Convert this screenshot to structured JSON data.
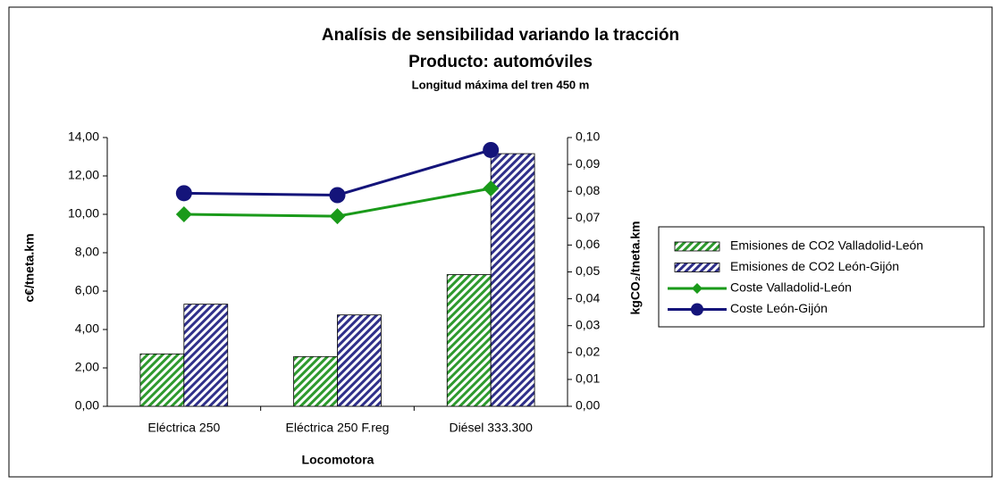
{
  "chart_data": {
    "type": "bar",
    "title": "Analísis de sensibilidad variando la tracción",
    "subtitle": "Producto: automóviles",
    "note": "Longitud máxima del tren 450 m",
    "xlabel": "Locomotora",
    "ylabel": "c€/tneta.km",
    "y2label": "kgCO₂/tneta.km",
    "categories": [
      "Eléctrica 250",
      "Eléctrica 250 F.reg",
      "Diésel 333.300"
    ],
    "series": [
      {
        "name": "Emisiones de CO2 Valladolid-León",
        "type": "bar",
        "axis": "y2",
        "color": "#2e9a2e",
        "values": [
          0.0195,
          0.0185,
          0.049
        ]
      },
      {
        "name": "Emisiones de CO2 León-Gijón",
        "type": "bar",
        "axis": "y2",
        "color": "#30308a",
        "values": [
          0.038,
          0.034,
          0.094
        ]
      },
      {
        "name": "Coste Valladolid-León",
        "type": "line",
        "marker": "diamond",
        "color": "#1a9a1a",
        "values": [
          10.0,
          9.9,
          11.35
        ]
      },
      {
        "name": "Coste León-Gijón",
        "type": "line",
        "marker": "circle",
        "color": "#14147a",
        "values": [
          11.1,
          11.0,
          13.35
        ]
      }
    ],
    "ylim": [
      0,
      14
    ],
    "yticks": [
      {
        "value": 0,
        "label": "0,00"
      },
      {
        "value": 2,
        "label": "2,00"
      },
      {
        "value": 4,
        "label": "4,00"
      },
      {
        "value": 6,
        "label": "6,00"
      },
      {
        "value": 8,
        "label": "8,00"
      },
      {
        "value": 10,
        "label": "10,00"
      },
      {
        "value": 12,
        "label": "12,00"
      },
      {
        "value": 14,
        "label": "14,00"
      }
    ],
    "y2lim": [
      0,
      0.1
    ],
    "y2ticks": [
      {
        "value": 0,
        "label": "0,00"
      },
      {
        "value": 0.01,
        "label": "0,01"
      },
      {
        "value": 0.02,
        "label": "0,02"
      },
      {
        "value": 0.03,
        "label": "0,03"
      },
      {
        "value": 0.04,
        "label": "0,04"
      },
      {
        "value": 0.05,
        "label": "0,05"
      },
      {
        "value": 0.06,
        "label": "0,06"
      },
      {
        "value": 0.07,
        "label": "0,07"
      },
      {
        "value": 0.08,
        "label": "0,08"
      },
      {
        "value": 0.09,
        "label": "0,09"
      },
      {
        "value": 0.1,
        "label": "0,10"
      }
    ],
    "grid": false
  }
}
